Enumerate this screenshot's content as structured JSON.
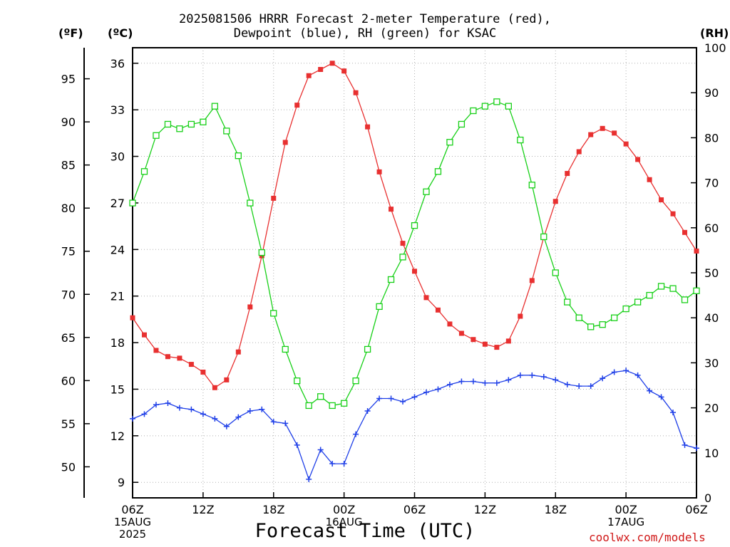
{
  "header": {
    "title_line1": "2025081506 HRRR Forecast 2-meter Temperature (red),",
    "title_line2": "Dewpoint (blue), RH (green) for KSAC",
    "unit_f": "(ºF)",
    "unit_c": "(ºC)",
    "unit_rh": "(RH)"
  },
  "footer": {
    "xlabel": "Forecast Time (UTC)",
    "credit": "coolwx.com/models"
  },
  "chart_data": {
    "type": "line",
    "title": "2025081506 HRRR Forecast 2-meter Temperature (red), Dewpoint (blue), RH (green) for KSAC",
    "xlabel": "Forecast Time (UTC)",
    "x_start": "2025-08-15 06Z",
    "x_step_hours": 1,
    "xlim_hours": [
      0,
      48
    ],
    "x_ticks": [
      {
        "hour": 0,
        "lines": [
          "06Z",
          "15AUG",
          "2025"
        ]
      },
      {
        "hour": 6,
        "lines": [
          "12Z"
        ]
      },
      {
        "hour": 12,
        "lines": [
          "18Z"
        ]
      },
      {
        "hour": 18,
        "lines": [
          "00Z",
          "16AUG"
        ]
      },
      {
        "hour": 24,
        "lines": [
          "06Z"
        ]
      },
      {
        "hour": 30,
        "lines": [
          "12Z"
        ]
      },
      {
        "hour": 36,
        "lines": [
          "18Z"
        ]
      },
      {
        "hour": 42,
        "lines": [
          "00Z",
          "17AUG"
        ]
      },
      {
        "hour": 48,
        "lines": [
          "06Z"
        ]
      }
    ],
    "y_celsius": {
      "label": "(ºC)",
      "ylim": [
        8.0,
        37.0
      ],
      "ticks": [
        9,
        12,
        15,
        18,
        21,
        24,
        27,
        30,
        33,
        36
      ]
    },
    "y_fahrenheit": {
      "label": "(ºF)",
      "ticks": [
        50,
        55,
        60,
        65,
        70,
        75,
        80,
        85,
        90,
        95
      ]
    },
    "y_rh": {
      "label": "(RH)",
      "ylim": [
        0,
        100
      ],
      "ticks": [
        0,
        10,
        20,
        30,
        40,
        50,
        60,
        70,
        80,
        90,
        100
      ]
    },
    "grid": true,
    "series": [
      {
        "name": "Temperature",
        "axis": "celsius",
        "color": "#e83030",
        "marker": "filled-square",
        "values": [
          19.6,
          18.5,
          17.5,
          17.1,
          17.0,
          16.6,
          16.1,
          15.1,
          15.6,
          17.4,
          20.3,
          23.6,
          27.3,
          30.9,
          33.3,
          35.2,
          35.6,
          36.0,
          35.5,
          34.1,
          31.9,
          29.0,
          26.6,
          24.4,
          22.6,
          20.9,
          20.1,
          19.2,
          18.6,
          18.2,
          17.9,
          17.7,
          18.1,
          19.7,
          22.0,
          24.8,
          27.1,
          28.9,
          30.3,
          31.4,
          31.8,
          31.5,
          30.8,
          29.8,
          28.5,
          27.2,
          26.3,
          25.1,
          23.9
        ]
      },
      {
        "name": "Dewpoint",
        "axis": "celsius",
        "color": "#2040e8",
        "marker": "plus",
        "values": [
          13.1,
          13.4,
          14.0,
          14.1,
          13.8,
          13.7,
          13.4,
          13.1,
          12.6,
          13.2,
          13.6,
          13.7,
          12.9,
          12.8,
          11.4,
          9.2,
          11.1,
          10.2,
          10.2,
          12.1,
          13.6,
          14.4,
          14.4,
          14.2,
          14.5,
          14.8,
          15.0,
          15.3,
          15.5,
          15.5,
          15.4,
          15.4,
          15.6,
          15.9,
          15.9,
          15.8,
          15.6,
          15.3,
          15.2,
          15.2,
          15.7,
          16.1,
          16.2,
          15.9,
          14.9,
          14.5,
          13.5,
          11.4,
          11.2
        ]
      },
      {
        "name": "RH",
        "axis": "rh",
        "color": "#18d018",
        "marker": "open-square",
        "values": [
          65.5,
          72.5,
          80.5,
          83.0,
          82.0,
          83.0,
          83.5,
          87.0,
          81.5,
          76.0,
          65.5,
          54.5,
          41.0,
          33.0,
          26.0,
          20.5,
          22.5,
          20.5,
          21.0,
          26.0,
          33.0,
          42.5,
          48.5,
          53.5,
          60.5,
          68.0,
          72.5,
          79.0,
          83.0,
          86.0,
          87.0,
          88.0,
          87.0,
          79.5,
          69.5,
          58.0,
          50.0,
          43.5,
          40.0,
          38.0,
          38.5,
          40.0,
          42.0,
          43.5,
          45.0,
          47.0,
          46.5,
          44.0,
          46.0
        ]
      }
    ]
  }
}
